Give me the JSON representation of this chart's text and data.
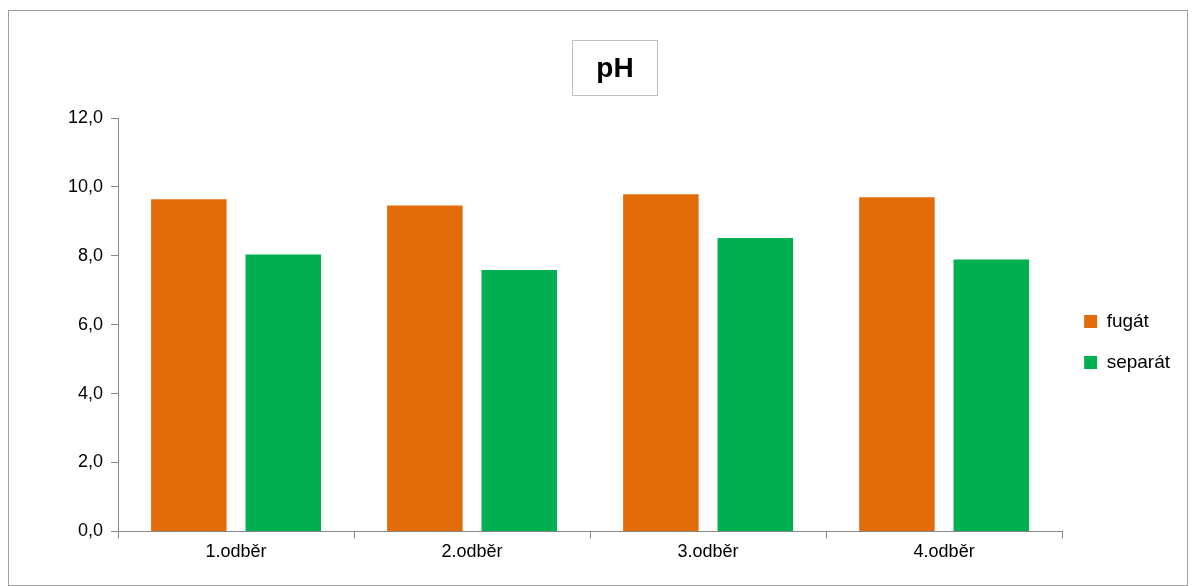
{
  "chart_data": {
    "type": "bar",
    "title": "pH",
    "categories": [
      "1.odběr",
      "2.odběr",
      "3.odběr",
      "4.odběr"
    ],
    "series": [
      {
        "name": "fugát",
        "color": "#e36c0a",
        "values": [
          9.64,
          9.46,
          9.79,
          9.7
        ]
      },
      {
        "name": "separát",
        "color": "#00b050",
        "values": [
          8.04,
          7.59,
          8.52,
          7.89
        ]
      }
    ],
    "ylim": [
      0,
      12
    ],
    "yticks": [
      {
        "value": 0,
        "label": "0,0"
      },
      {
        "value": 2,
        "label": "2,0"
      },
      {
        "value": 4,
        "label": "4,0"
      },
      {
        "value": 6,
        "label": "6,0"
      },
      {
        "value": 8,
        "label": "8,0"
      },
      {
        "value": 10,
        "label": "10,0"
      },
      {
        "value": 12,
        "label": "12,0"
      }
    ],
    "grid": false,
    "legend": "right"
  }
}
